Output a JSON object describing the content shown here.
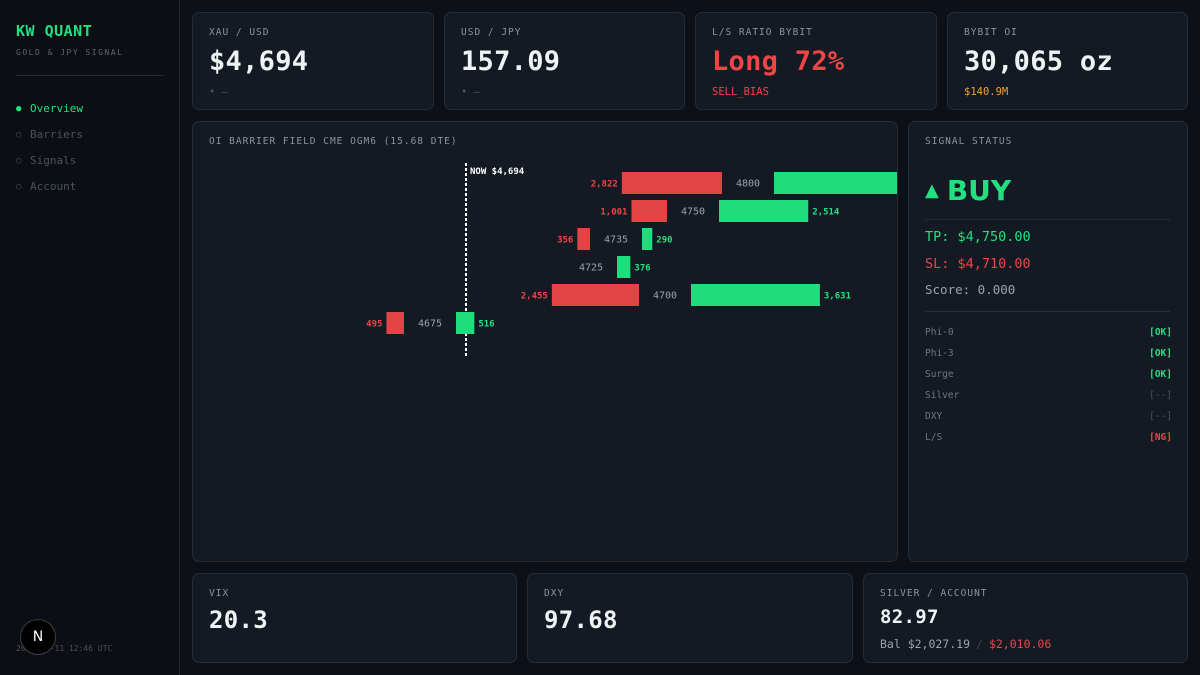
{
  "sidebar": {
    "brand": "KW QUANT",
    "subtitle": "GOLD & JPY SIGNAL",
    "nav": [
      {
        "label": "Overview",
        "bullet": "●",
        "active": true
      },
      {
        "label": "Barriers",
        "bullet": "○",
        "active": false
      },
      {
        "label": "Signals",
        "bullet": "○",
        "active": false
      },
      {
        "label": "Account",
        "bullet": "○",
        "active": false
      }
    ],
    "footer": "2026-05-11 12:46 UTC",
    "badge": "N"
  },
  "top_cards": [
    {
      "label": "XAU / USD",
      "value": "$4,694",
      "sub": "• —",
      "sub_color": "muted"
    },
    {
      "label": "USD / JPY",
      "value": "157.09",
      "sub": "• —",
      "sub_color": "muted"
    },
    {
      "label": "L/S RATIO BYBIT",
      "value": "Long 72%",
      "sub": "SELL_BIAS",
      "sub_color": "red",
      "value_color": "#f04545"
    },
    {
      "label": "BYBIT OI",
      "value": "30,065 oz",
      "sub": "$140.9M",
      "sub_color": "amber"
    }
  ],
  "chart_panel": {
    "title": "OI BARRIER FIELD CME OGM6 (15.68 DTE)",
    "now_label": "NOW $4,694"
  },
  "chart_data": {
    "type": "bar",
    "now_price": 4694,
    "rows": [
      {
        "strike": "4800",
        "put": 2822,
        "call": 5680,
        "put_label": "2,822",
        "call_label": ""
      },
      {
        "strike": "4750",
        "put": 1001,
        "call": 2514,
        "put_label": "1,001",
        "call_label": "2,514"
      },
      {
        "strike": "4735",
        "put": 356,
        "call": 290,
        "put_label": "356",
        "call_label": "290"
      },
      {
        "strike": "4725",
        "put": 0,
        "call": 376,
        "put_label": "",
        "call_label": "376"
      },
      {
        "strike": "4700",
        "put": 2455,
        "call": 3631,
        "put_label": "2,455",
        "call_label": "3,631"
      },
      {
        "strike": "4675",
        "put": 495,
        "call": 516,
        "put_label": "495",
        "call_label": "516"
      }
    ],
    "colors": {
      "put": "#e04444",
      "call": "#1fdc7c"
    }
  },
  "signal": {
    "title": "SIGNAL STATUS",
    "direction": "BUY",
    "arrow": "▲",
    "tp": "TP: $4,750.00",
    "sl": "SL: $4,710.00",
    "score": "Score: 0.000",
    "checks": [
      {
        "name": "Phi-0",
        "status": "[OK]",
        "kind": "ok"
      },
      {
        "name": "Phi-3",
        "status": "[OK]",
        "kind": "ok"
      },
      {
        "name": "Surge",
        "status": "[OK]",
        "kind": "ok"
      },
      {
        "name": "Silver",
        "status": "[--]",
        "kind": "na"
      },
      {
        "name": "DXY",
        "status": "[--]",
        "kind": "na"
      },
      {
        "name": "L/S",
        "status": "[NG]",
        "kind": "ng"
      }
    ]
  },
  "bottom_cards": [
    {
      "label": "VIX",
      "value": "20.3"
    },
    {
      "label": "DXY",
      "value": "97.68"
    },
    {
      "label": "SILVER / ACCOUNT",
      "value": "82.97",
      "balance": "Bal $2,027.19",
      "separator": "/",
      "equity": "$2,010.06"
    }
  ]
}
